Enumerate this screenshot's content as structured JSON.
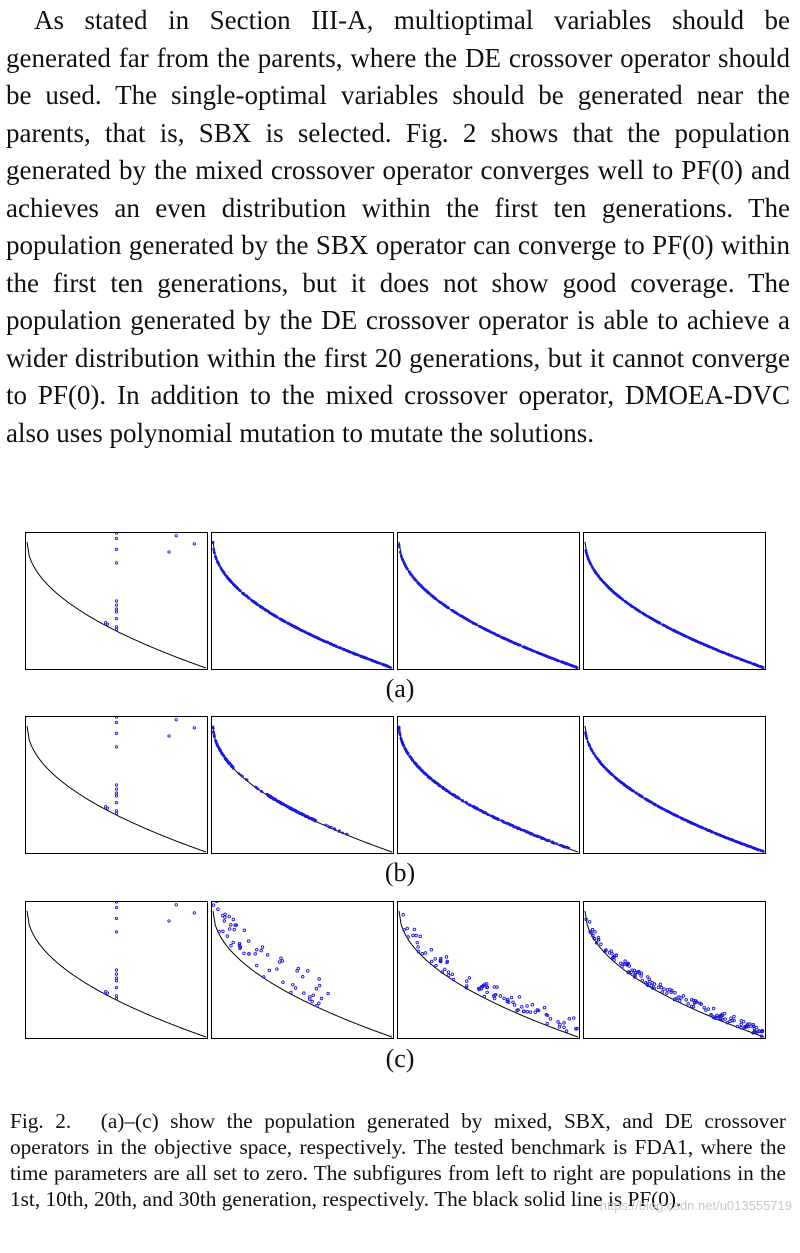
{
  "body_paragraph": "As stated in Section III-A, multioptimal variables should be generated far from the parents, where the DE crossover opera­tor should be used. The single-optimal variables should be gen­erated near the parents, that is, SBX is selected. Fig. 2 shows that the population generated by the mixed crossover opera­tor converges well to PF(0) and achieves an even distribution within the first ten generations. The population generated by the SBX operator can converge to PF(0) within the first ten generations, but it does not show good coverage. The popula­tion generated by the DE crossover operator is able to achieve a wider distribution within the first 20 generations, but it can­not converge to PF(0). In addition to the mixed crossover operator, DMOEA-DVC also uses polynomial mutation to mutate the solutions.",
  "figure": {
    "subfigure_labels": [
      "(a)",
      "(b)",
      "(c)"
    ],
    "caption_number": "Fig. 2.",
    "caption_text": "(a)–(c) show the population generated by mixed, SBX, and DE crossover operators in the objective space, respectively. The tested benchmark is FDA1, where the time parameters are all set to zero. The subfigures from left to right are populations in the 1st, 10th, 20th, and 30th generation, respectively. The black solid line is PF(0).",
    "colors": {
      "front_line": "#000000",
      "population_points": "#1a1adc"
    },
    "rows": [
      {
        "label": "(a)",
        "panels": [
          {
            "points": [
              [
                0.5,
                1.0
              ],
              [
                0.5,
                0.96
              ],
              [
                0.83,
                0.98
              ],
              [
                0.79,
                0.86
              ],
              [
                0.93,
                0.92
              ],
              [
                0.5,
                0.88
              ],
              [
                0.5,
                0.78
              ],
              [
                0.5,
                0.5
              ],
              [
                0.5,
                0.47
              ],
              [
                0.5,
                0.44
              ],
              [
                0.5,
                0.42
              ],
              [
                0.5,
                0.37
              ],
              [
                0.5,
                0.31
              ],
              [
                0.5,
                0.29
              ],
              [
                0.44,
                0.34
              ],
              [
                0.45,
                0.33
              ]
            ]
          },
          {
            "spread": "dense",
            "noise": 0.005,
            "count": 420
          },
          {
            "spread": "dense",
            "noise": 0.004,
            "count": 420
          },
          {
            "spread": "dense",
            "noise": 0.004,
            "count": 420
          }
        ]
      },
      {
        "label": "(b)",
        "panels": [
          {
            "points": [
              [
                0.5,
                1.0
              ],
              [
                0.5,
                0.96
              ],
              [
                0.83,
                0.98
              ],
              [
                0.79,
                0.86
              ],
              [
                0.93,
                0.92
              ],
              [
                0.5,
                0.88
              ],
              [
                0.5,
                0.78
              ],
              [
                0.5,
                0.5
              ],
              [
                0.5,
                0.47
              ],
              [
                0.5,
                0.44
              ],
              [
                0.5,
                0.42
              ],
              [
                0.5,
                0.37
              ],
              [
                0.5,
                0.31
              ],
              [
                0.5,
                0.29
              ],
              [
                0.44,
                0.34
              ],
              [
                0.45,
                0.33
              ]
            ]
          },
          {
            "spread": "clustered",
            "noise": 0.01,
            "count": 280
          },
          {
            "spread": "mostly-dense",
            "noise": 0.008,
            "count": 360
          },
          {
            "spread": "dense",
            "noise": 0.005,
            "count": 420
          }
        ]
      },
      {
        "label": "(c)",
        "panels": [
          {
            "points": [
              [
                0.5,
                1.0
              ],
              [
                0.5,
                0.96
              ],
              [
                0.83,
                0.98
              ],
              [
                0.79,
                0.86
              ],
              [
                0.93,
                0.92
              ],
              [
                0.5,
                0.88
              ],
              [
                0.5,
                0.78
              ],
              [
                0.5,
                0.5
              ],
              [
                0.5,
                0.47
              ],
              [
                0.5,
                0.44
              ],
              [
                0.5,
                0.42
              ],
              [
                0.5,
                0.37
              ],
              [
                0.5,
                0.31
              ],
              [
                0.5,
                0.29
              ],
              [
                0.44,
                0.34
              ],
              [
                0.45,
                0.33
              ]
            ]
          },
          {
            "spread": "scattered",
            "noise": 0.09,
            "count": 60,
            "max_x": 0.65
          },
          {
            "spread": "scattered",
            "noise": 0.05,
            "count": 90,
            "max_x": 1.0
          },
          {
            "spread": "scattered-near",
            "noise": 0.025,
            "count": 150,
            "max_x": 1.0
          }
        ]
      }
    ]
  },
  "watermark": "https://blog.csdn.net/u013555719"
}
